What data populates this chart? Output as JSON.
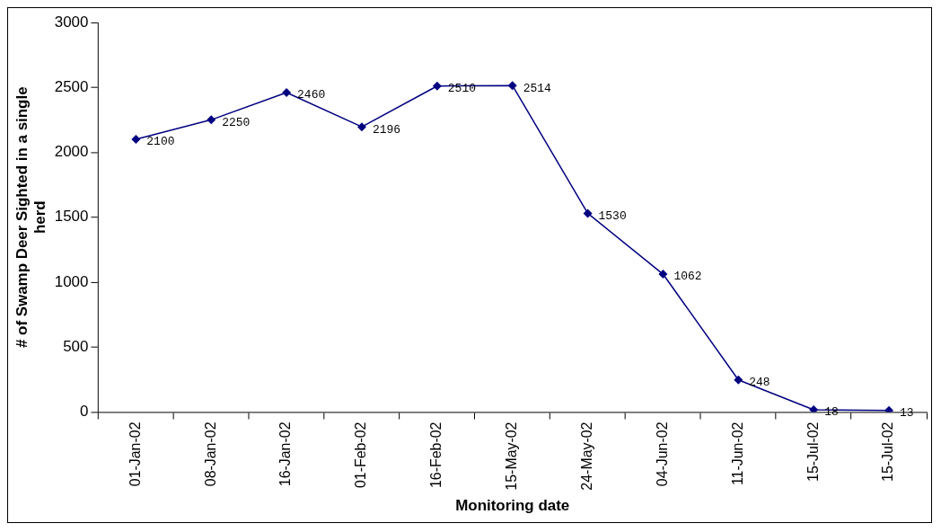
{
  "chart_data": {
    "type": "line",
    "xlabel": "Monitoring date",
    "ylabel": "# of Swamp Deer Sighted in a single herd",
    "categories": [
      "01-Jan-02",
      "08-Jan-02",
      "16-Jan-02",
      "01-Feb-02",
      "16-Feb-02",
      "15-May-02",
      "24-May-02",
      "04-Jun-02",
      "11-Jun-02",
      "15-Jul-02",
      "15-Jul-02"
    ],
    "values": [
      2100,
      2250,
      2460,
      2196,
      2510,
      2514,
      1530,
      1062,
      248,
      18,
      13
    ],
    "color": "#000080",
    "marker": "diamond",
    "line_style": "solid",
    "data_labels": true,
    "ylim": [
      0,
      3000
    ],
    "yticks": [
      0,
      500,
      1000,
      1500,
      2000,
      2500,
      3000
    ],
    "grid": false,
    "legend": false
  }
}
